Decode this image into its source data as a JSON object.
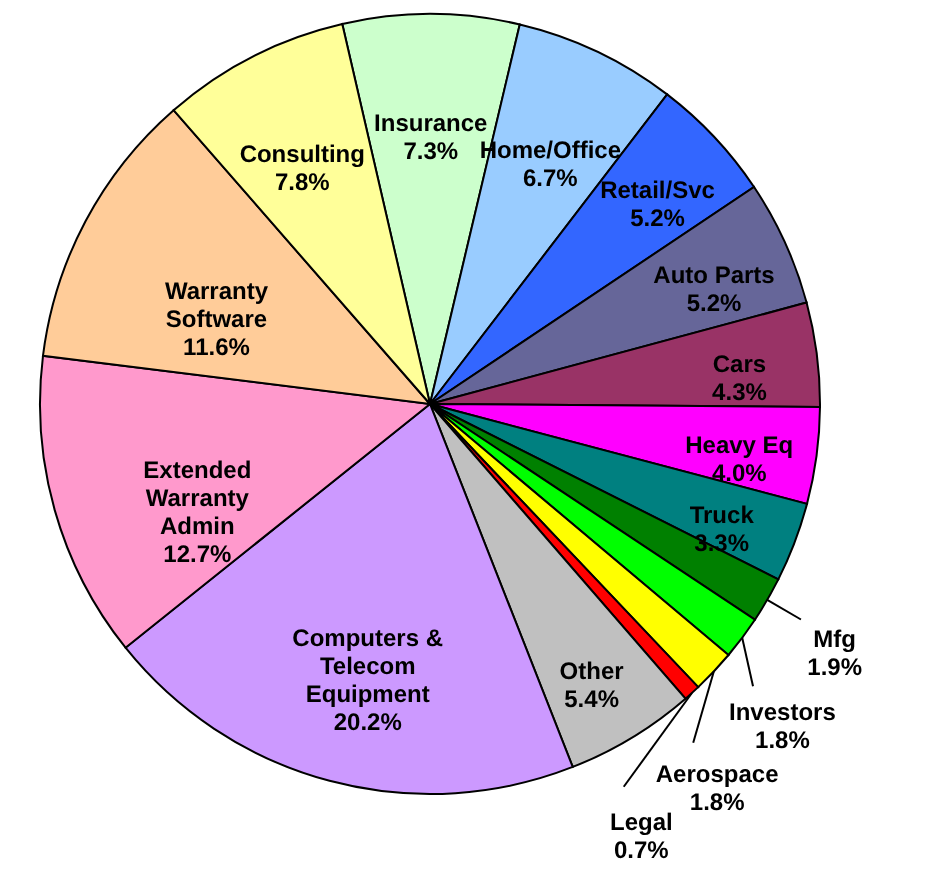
{
  "chart_data": {
    "type": "pie",
    "categories": [
      "Insurance",
      "Home/Office",
      "Retail/Svc",
      "Auto Parts",
      "Cars",
      "Heavy Eq",
      "Truck",
      "Mfg",
      "Investors",
      "Aerospace",
      "Legal",
      "Other",
      "Computers & Telecom Equipment",
      "Extended Warranty Admin",
      "Warranty Software",
      "Consulting"
    ],
    "values": [
      7.3,
      6.7,
      5.2,
      5.2,
      4.3,
      4.0,
      3.3,
      1.9,
      1.8,
      1.8,
      0.7,
      5.4,
      20.2,
      12.7,
      11.6,
      7.8
    ],
    "colors": [
      "#ccffcc",
      "#99ccff",
      "#3366ff",
      "#666699",
      "#993366",
      "#ff00ff",
      "#008080",
      "#008000",
      "#00ff00",
      "#ffff00",
      "#ff0000",
      "#c0c0c0",
      "#cc99ff",
      "#ff99cc",
      "#ffcc99",
      "#ffff99"
    ],
    "value_labels": [
      "7.3%",
      "6.7%",
      "5.2%",
      "5.2%",
      "4.3%",
      "4.0%",
      "3.3%",
      "1.9%",
      "1.8%",
      "1.8%",
      "0.7%",
      "5.4%",
      "20.2%",
      "12.7%",
      "11.6%",
      "7.8%"
    ]
  }
}
